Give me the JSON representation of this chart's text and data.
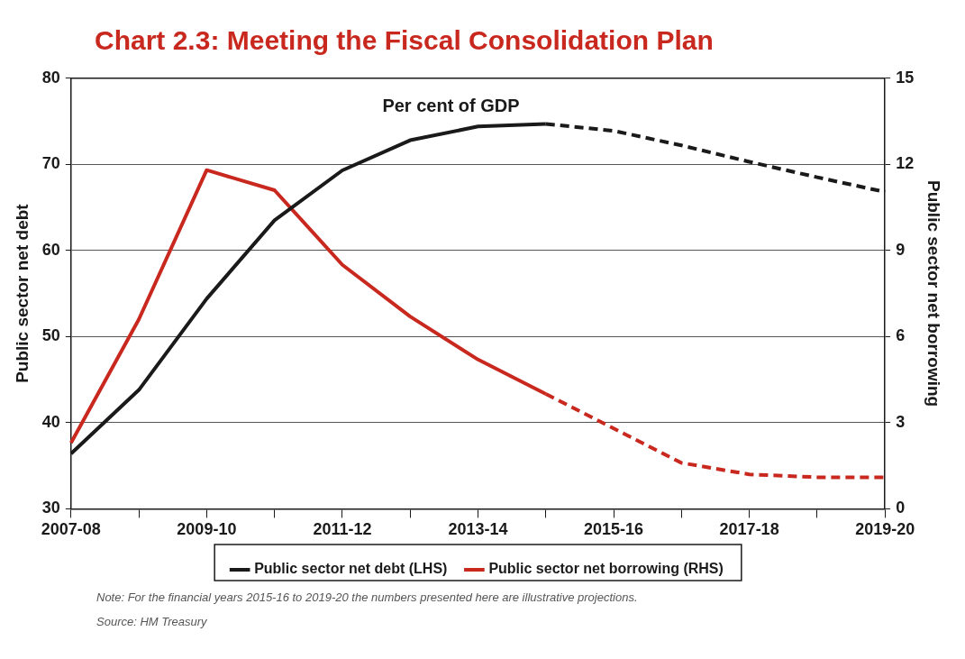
{
  "chart_data": {
    "type": "line",
    "title": "Chart 2.3: Meeting the Fiscal Consolidation Plan",
    "subtitle": "Per cent of GDP",
    "ylabel": "Public sector net debt",
    "y2label": "Public sector net borrowing",
    "categories": [
      "2007-08",
      null,
      "2009-10",
      null,
      "2011-12",
      null,
      "2013-14",
      null,
      "2015-16",
      null,
      "2017-18",
      null,
      "2019-20"
    ],
    "series": [
      {
        "name": "Public sector net debt (LHS)",
        "color": "#1a1a1a",
        "values": [
          36.4,
          43.8,
          54.4,
          63.5,
          69.3,
          72.8,
          74.4,
          74.7,
          null,
          null,
          null,
          null,
          null
        ]
      },
      {
        "color": "#1a1a1a",
        "line_style": "dashed",
        "values": [
          null,
          null,
          null,
          null,
          null,
          null,
          null,
          74.7,
          73.9,
          72.2,
          70.3,
          68.5,
          66.8
        ]
      },
      {
        "name": "Public sector net borrowing (RHS)",
        "color": "#c8281e",
        "axis": "y2",
        "values": [
          2.3,
          6.6,
          11.8,
          11.1,
          8.5,
          6.7,
          5.2,
          4.0,
          null,
          null,
          null,
          null,
          null
        ]
      },
      {
        "color": "#c8281e",
        "axis": "y2",
        "line_style": "dashed",
        "values": [
          null,
          null,
          null,
          null,
          null,
          null,
          null,
          4.0,
          2.8,
          1.6,
          1.2,
          1.1,
          1.1
        ]
      }
    ],
    "ylim": [
      30,
      80
    ],
    "yticks": [
      30,
      40,
      50,
      60,
      70,
      80
    ],
    "y2lim": [
      0,
      15
    ],
    "y2ticks": [
      0,
      3,
      6,
      9,
      12,
      15
    ],
    "grid": "y",
    "legend": "bottom",
    "marker": "none",
    "line_style": "solid",
    "annotations": [
      "Note: For the financial years 2015-16 to 2019-20 the numbers presented here are illustrative projections.",
      "Source: HM Treasury"
    ]
  }
}
